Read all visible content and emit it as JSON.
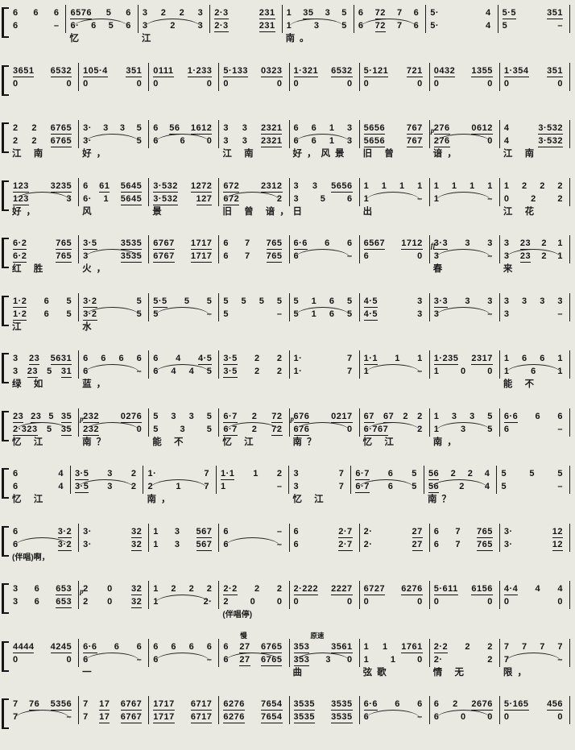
{
  "meta": {
    "notation_type": "jianpu numbered musical notation, two voices per system with lyrics",
    "ink_color": "#141414",
    "paper_color": "#e9e9e2"
  },
  "systems": [
    {
      "m": [
        {
          "u": "6 6 6",
          "l": "6 –",
          "w": "0.8"
        },
        {
          "u": "6576 5 6",
          "l": "6· 6 5 6",
          "y": "忆",
          "s": 1
        },
        {
          "u": "3 2 2 3",
          "l": "3 2 3",
          "y": "江",
          "s": 1
        },
        {
          "u": "2·3 231",
          "l": "2·3 231"
        },
        {
          "u": "1 35 3 5",
          "l": "1 3 5",
          "y": "南。",
          "s": 1
        },
        {
          "u": "6 72 7 6",
          "l": "6 72 7 6",
          "s": 1
        },
        {
          "u": "5· 4",
          "l": "5· 4"
        },
        {
          "u": "5·5 351",
          "l": "5 –"
        }
      ]
    },
    {
      "m": [
        {
          "u": "3651 6532",
          "l": "0 0"
        },
        {
          "u": "105·4 351",
          "l": "0 0"
        },
        {
          "u": "0111 1·233",
          "l": "0 0"
        },
        {
          "u": "5·133 0323",
          "l": "0 0"
        },
        {
          "u": "1·321 6532",
          "l": "0 0"
        },
        {
          "u": "5·121 721",
          "l": "0 0"
        },
        {
          "u": "0432 1355",
          "l": "0 0"
        },
        {
          "u": "1·354 351",
          "l": "0 0"
        }
      ]
    },
    {
      "m": [
        {
          "u": "2 2 6765",
          "l": "2 2 6765",
          "y": "江 南"
        },
        {
          "u": "3· 3 3 5",
          "l": "3· 5",
          "y": "好，",
          "s": 1
        },
        {
          "u": "6 56 1612",
          "l": "6 6 0",
          "s": 1
        },
        {
          "u": "3 3 2321",
          "l": "3 3 2321",
          "y": "江 南"
        },
        {
          "u": "6 6 1 3",
          "l": "6 6 1 3",
          "y": "好，风景",
          "s": 1
        },
        {
          "u": "5656 767",
          "l": "5656 767",
          "y": "旧 曾"
        },
        {
          "u": "276 0612",
          "l": "276 0",
          "y": "谙，",
          "d": "p",
          "s": 1
        },
        {
          "u": "4 3·532",
          "l": "4 3·532",
          "y": "江 南"
        }
      ]
    },
    {
      "m": [
        {
          "u": "123 3235",
          "l": "123 3",
          "y": "好，",
          "s": 1
        },
        {
          "u": "6 61 5645",
          "l": "6· 1 5645",
          "y": "风"
        },
        {
          "u": "3·532 1272",
          "l": "3·532 127",
          "y": "景"
        },
        {
          "u": "672 2312",
          "l": "672 2",
          "y": "旧 曾 谙，",
          "s": 1
        },
        {
          "u": "3 3 5656",
          "l": "3 5 6",
          "y": "日"
        },
        {
          "u": "1 1 1 1",
          "l": "1 –",
          "y": "出",
          "s": 1
        },
        {
          "u": "1 1 1 1",
          "l": "1 –",
          "s": 1
        },
        {
          "u": "1 2 2 2",
          "l": "0 2 2",
          "y": "江 花"
        }
      ]
    },
    {
      "m": [
        {
          "u": "6·2 765",
          "l": "6·2 765",
          "y": "红 胜"
        },
        {
          "u": "3·5 3535",
          "l": "3 3535",
          "y": "火，",
          "s": 1
        },
        {
          "u": "6767 1717",
          "l": "6767 1717"
        },
        {
          "u": "6 7 765",
          "l": "6 7 765"
        },
        {
          "u": "6·6 6 6",
          "l": "6 –",
          "s": 1
        },
        {
          "u": "6567 1712",
          "l": "6 0"
        },
        {
          "u": "3·3 3 3",
          "l": "3 –",
          "y": "春",
          "d": "ff",
          "s": 1
        },
        {
          "u": "3 23 2 1",
          "l": "3 23 2 1",
          "y": "来",
          "s": 1
        }
      ]
    },
    {
      "m": [
        {
          "u": "1·2 6 5",
          "l": "1·2 6 5",
          "y": "江"
        },
        {
          "u": "3·2 5",
          "l": "3·2 5",
          "y": "水",
          "s": 1
        },
        {
          "u": "5·5 5 5",
          "l": "5 –",
          "s": 1
        },
        {
          "u": "5 5 5 5",
          "l": "5 –"
        },
        {
          "u": "5 1 6 5",
          "l": "5 1 6 5",
          "s": 1
        },
        {
          "u": "4·5 3",
          "l": "4·5 3"
        },
        {
          "u": "3·3 3 3",
          "l": "3 –",
          "s": 1
        },
        {
          "u": "3 3 3 3",
          "l": "3 –"
        }
      ]
    },
    {
      "m": [
        {
          "u": "3 23 5631",
          "l": "3 23 5 31",
          "y": "绿 如"
        },
        {
          "u": "6 6 6 6",
          "l": "6 –",
          "y": "蓝，",
          "s": 1
        },
        {
          "u": "6 4 4·5",
          "l": "6 4 4 5",
          "s": 1
        },
        {
          "u": "3·5 2 2",
          "l": "3·5 2 2"
        },
        {
          "u": "1· 7",
          "l": "1· 7"
        },
        {
          "u": "1·1 1 1",
          "l": "1 –",
          "s": 1
        },
        {
          "u": "1·235 2317",
          "l": "1 0 0"
        },
        {
          "u": "1 6 6 1",
          "l": "1 6 1",
          "y": "能 不",
          "s": 1
        }
      ]
    },
    {
      "m": [
        {
          "u": "23 23 5 35",
          "l": "2·323 5 35",
          "y": "忆 江",
          "s": 1
        },
        {
          "u": "232 0276",
          "l": "232 0",
          "y": "南？",
          "d": "p",
          "s": 1
        },
        {
          "u": "5 3 3 5",
          "l": "5 3 5",
          "y": "能 不"
        },
        {
          "u": "6·7 2 72",
          "l": "6·7 2 72",
          "y": "忆 江",
          "s": 1
        },
        {
          "u": "676 0217",
          "l": "676 0",
          "y": "南？",
          "d": "p",
          "s": 1
        },
        {
          "u": "67 67 2 2",
          "l": "6·767 2",
          "y": "忆 江",
          "s": 1
        },
        {
          "u": "1 3 3 5",
          "l": "1 3 5",
          "y": "南，",
          "s": 1
        },
        {
          "u": "6·6 6 6",
          "l": "6 –"
        }
      ]
    },
    {
      "m": [
        {
          "u": "6 4",
          "l": "6 4",
          "y": "忆 江",
          "w": "0.85"
        },
        {
          "u": "3·5 3 2",
          "l": "3·5 3 2",
          "s": 1
        },
        {
          "u": "1· 7",
          "l": "2 1 7",
          "y": "南，",
          "s": 1
        },
        {
          "u": "1·1 1 2",
          "l": "1 –"
        },
        {
          "u": "3 7",
          "l": "3 7",
          "y": "忆 江",
          "w": "0.85"
        },
        {
          "u": "6·7 6 5",
          "l": "6·7 6 5",
          "s": 1
        },
        {
          "u": "56 2 2 4",
          "l": "56 2 4",
          "y": "南？",
          "s": 1
        },
        {
          "u": "5 5 5",
          "l": "5 –"
        }
      ]
    },
    {
      "m": [
        {
          "u": "6 3·2",
          "l": "6 3·2",
          "y": "(伴唱)啊，",
          "ysmall": 1,
          "s": 1
        },
        {
          "u": "3· 32",
          "l": "3· 32"
        },
        {
          "u": "1 3 567",
          "l": "1 3 567"
        },
        {
          "u": "6 –",
          "l": "6 –",
          "s": 1
        },
        {
          "u": "6 2·7",
          "l": "6 2·7"
        },
        {
          "u": "2· 27",
          "l": "2· 27"
        },
        {
          "u": "6 7 765",
          "l": "6 7 765"
        },
        {
          "u": "3· 12",
          "l": "3· 12"
        }
      ]
    },
    {
      "m": [
        {
          "u": "3 6 653",
          "l": "3 6 653"
        },
        {
          "u": "2 0 32",
          "l": "2 0 32",
          "d": "p"
        },
        {
          "u": "1 2 2 2",
          "l": "1 2·",
          "s": 1
        },
        {
          "u": "2·2 2 2",
          "l": "2 0 0",
          "y": "(伴唱停)",
          "ysmall": 1
        },
        {
          "u": "2·222 2227",
          "l": "0 0"
        },
        {
          "u": "6727 6276",
          "l": "0 0"
        },
        {
          "u": "5·611 6156",
          "l": "0 0"
        },
        {
          "u": "4·4 4 4",
          "l": "0 0"
        }
      ]
    },
    {
      "m": [
        {
          "u": "4444 4245",
          "l": "0 0"
        },
        {
          "u": "6·6 6 6",
          "l": "6 –",
          "y": "一",
          "s": 1
        },
        {
          "u": "6 6 6 6",
          "l": "6 –",
          "s": 1
        },
        {
          "u": "6 27 6765",
          "l": "6 27 6765",
          "t": "慢",
          "s": 1
        },
        {
          "u": "353 3561",
          "l": "353 3 0",
          "t": "原速",
          "y": "曲",
          "s": 1
        },
        {
          "u": "1 1 1761",
          "l": "1 1 0",
          "y": "弦歌"
        },
        {
          "u": "2·2 2 2",
          "l": "2· 2",
          "y": "情 无"
        },
        {
          "u": "7 7 7 7",
          "l": "7 –",
          "y": "限，",
          "s": 1
        }
      ]
    },
    {
      "m": [
        {
          "u": "7 76 5356",
          "l": "7 –",
          "s": 1
        },
        {
          "u": "7 17 6767",
          "l": "7 17 6767"
        },
        {
          "u": "1717 6717",
          "l": "1717 6717"
        },
        {
          "u": "6276 7654",
          "l": "6276 7654"
        },
        {
          "u": "3535 3535",
          "l": "3535 3535"
        },
        {
          "u": "6·6 6 6",
          "l": "6 –",
          "s": 1
        },
        {
          "u": "6 2 2676",
          "l": "6 0 0",
          "s": 1
        },
        {
          "u": "5·165 456",
          "l": "0 0"
        }
      ]
    }
  ]
}
